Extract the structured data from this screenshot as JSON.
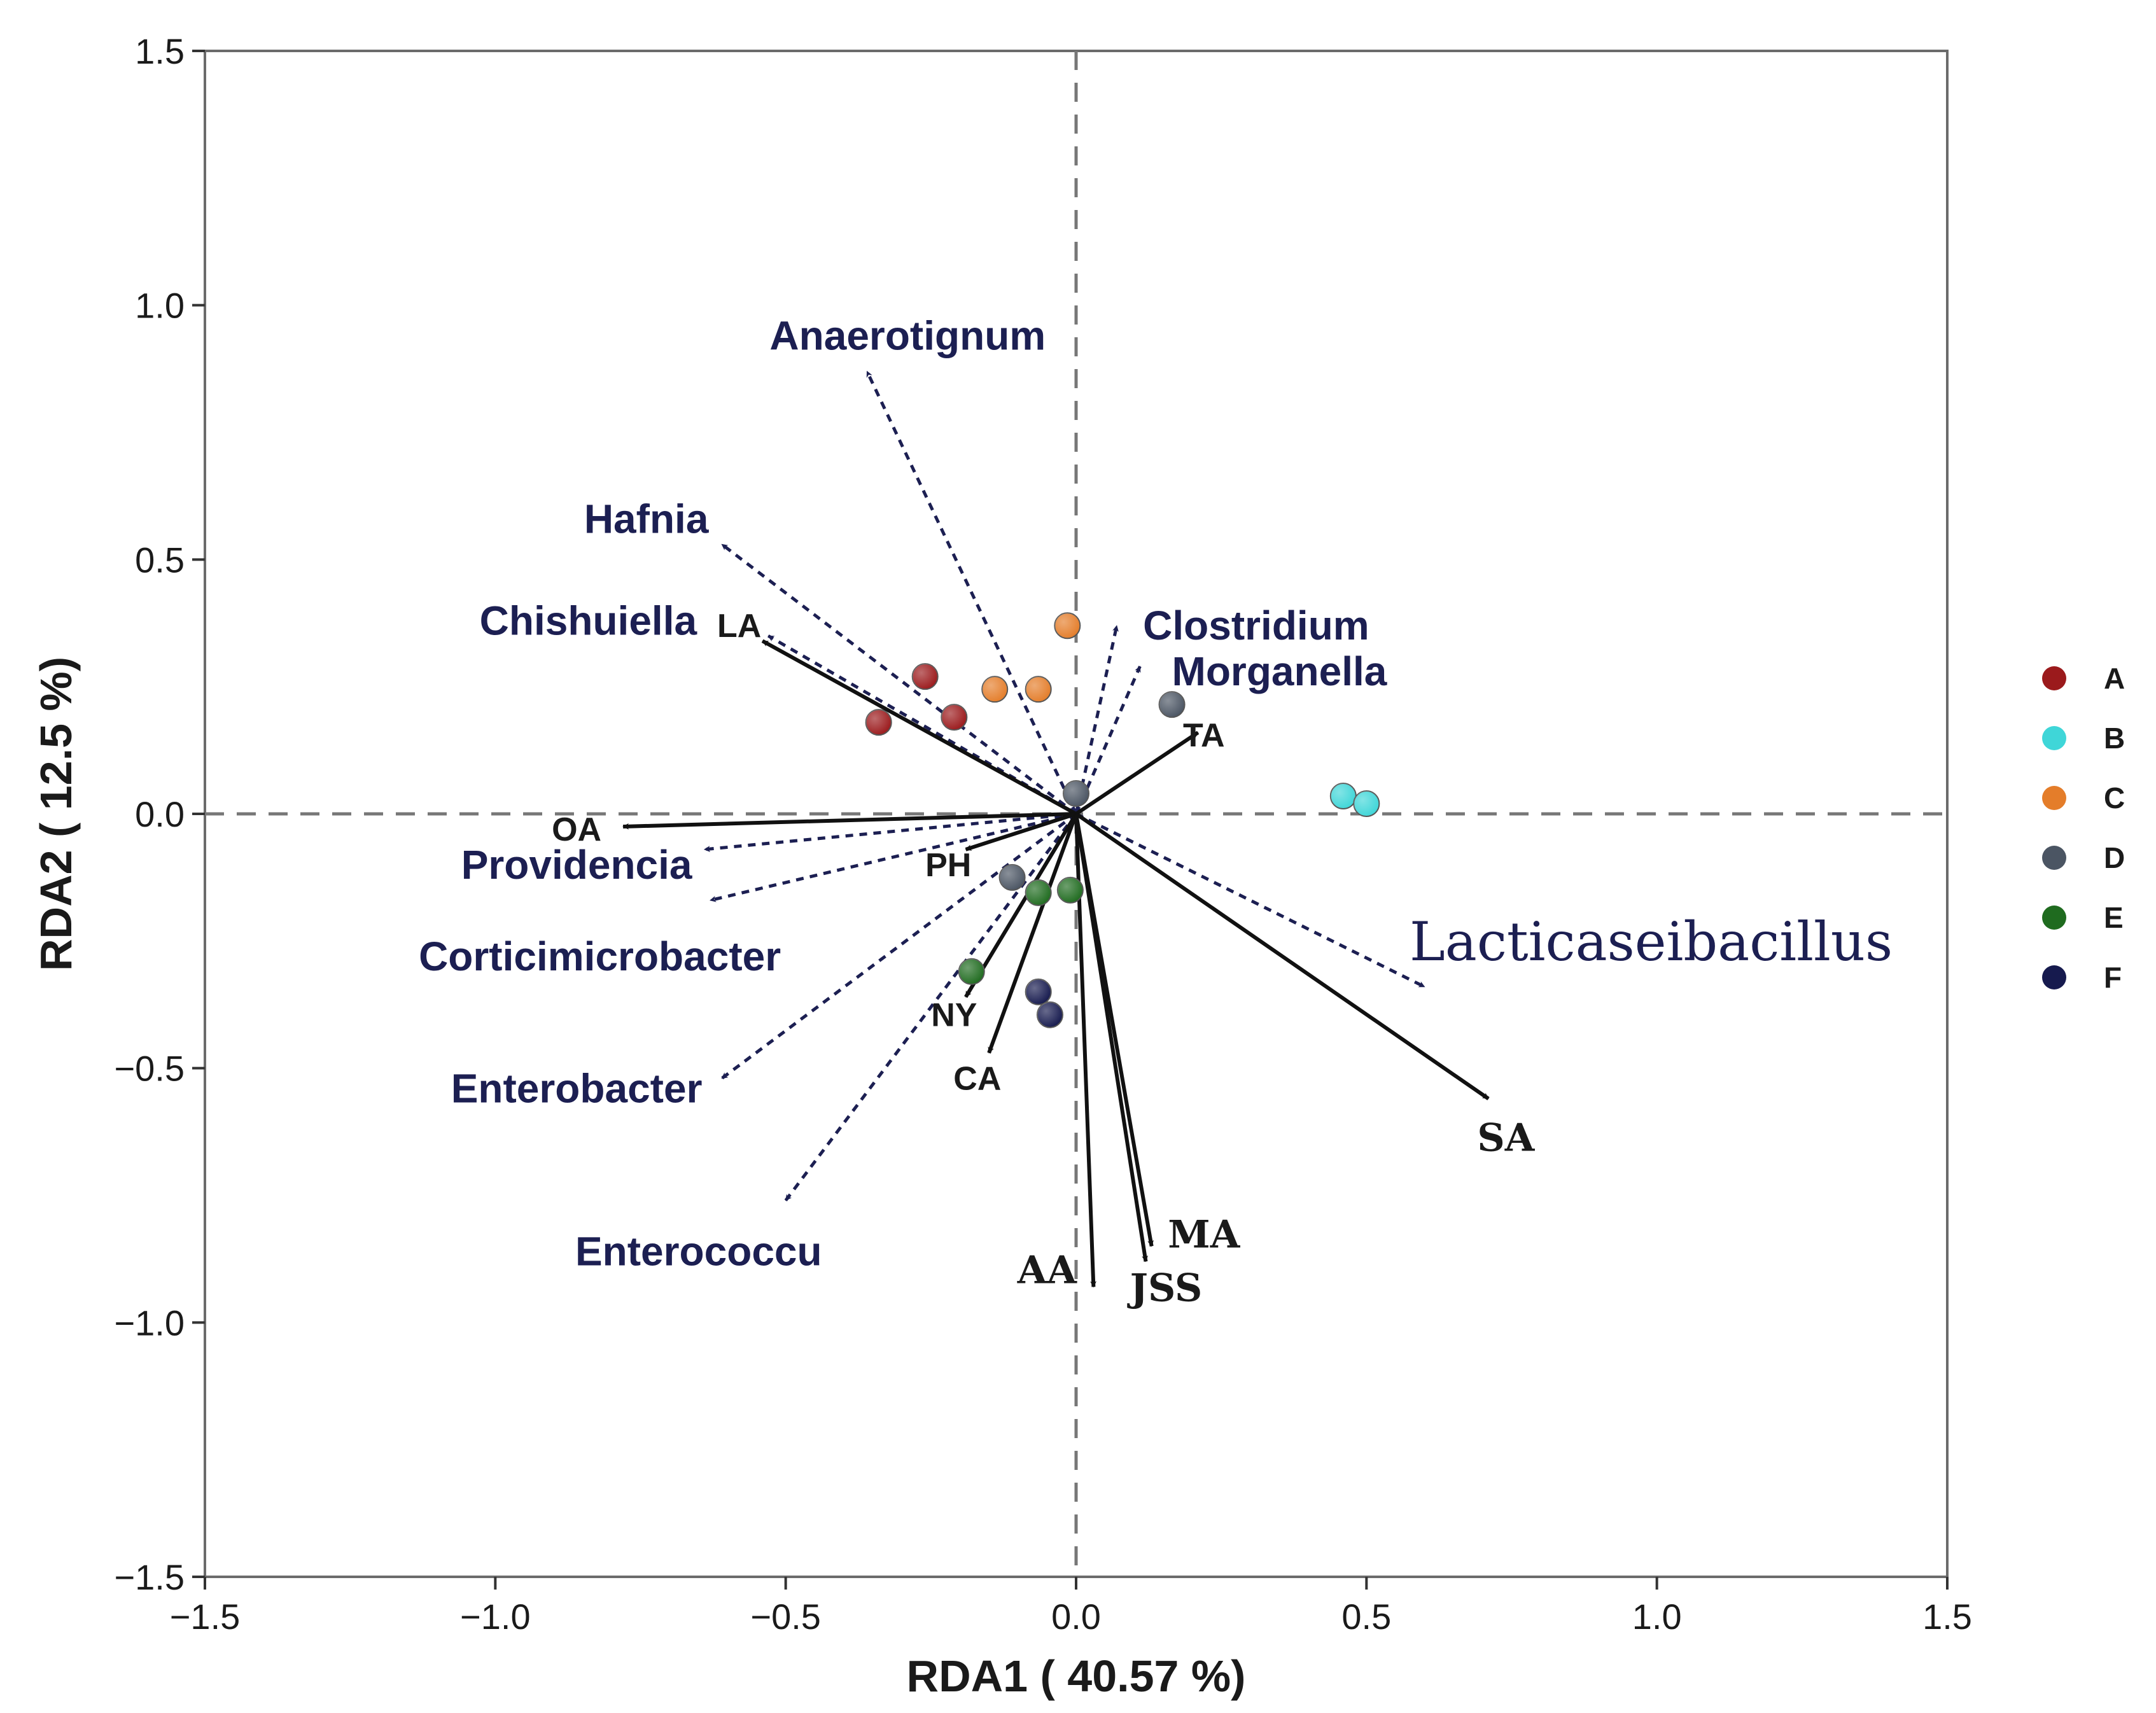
{
  "chart_data": {
    "type": "scatter",
    "subtype": "rda-biplot",
    "xlabel": "RDA1 ( 40.57 %)",
    "ylabel": "RDA2 ( 12.5 %)",
    "xlim": [
      -1.5,
      1.5
    ],
    "ylim": [
      -1.5,
      1.5
    ],
    "xticks": [
      -1.5,
      -1.0,
      -0.5,
      0.0,
      0.5,
      1.0,
      1.5
    ],
    "xtick_labels": [
      "−1.5",
      "−1.0",
      "−0.5",
      "0.0",
      "0.5",
      "1.0",
      "1.5"
    ],
    "yticks": [
      -1.5,
      -1.0,
      -0.5,
      0.0,
      0.5,
      1.0,
      1.5
    ],
    "ytick_labels": [
      "−1.5",
      "−1.0",
      "−0.5",
      "0.0",
      "0.5",
      "1.0",
      "1.5"
    ],
    "reference_lines": {
      "x": 0,
      "y": 0,
      "style": "dashed"
    },
    "groups": [
      {
        "name": "A",
        "color": "#9b1a1c",
        "points": [
          [
            -0.34,
            0.18
          ],
          [
            -0.26,
            0.27
          ],
          [
            -0.21,
            0.19
          ]
        ]
      },
      {
        "name": "B",
        "color": "#3fd6d8",
        "points": [
          [
            0.46,
            0.035
          ],
          [
            0.5,
            0.02
          ]
        ]
      },
      {
        "name": "C",
        "color": "#e47d2a",
        "points": [
          [
            -0.14,
            0.245
          ],
          [
            -0.065,
            0.245
          ],
          [
            -0.015,
            0.37
          ]
        ]
      },
      {
        "name": "D",
        "color": "#4b5563",
        "points": [
          [
            0.165,
            0.215
          ],
          [
            0.0,
            0.04
          ],
          [
            -0.11,
            -0.125
          ]
        ]
      },
      {
        "name": "E",
        "color": "#1f6b1f",
        "points": [
          [
            -0.065,
            -0.155
          ],
          [
            -0.01,
            -0.15
          ],
          [
            -0.18,
            -0.31
          ]
        ]
      },
      {
        "name": "F",
        "color": "#161a4e",
        "points": [
          [
            -0.065,
            -0.35
          ],
          [
            -0.045,
            -0.395
          ]
        ]
      }
    ],
    "species_vectors": [
      {
        "name": "Anaerotignum",
        "x": -0.36,
        "y": 0.87
      },
      {
        "name": "Hafnia",
        "x": -0.61,
        "y": 0.53
      },
      {
        "name": "Chishuiella",
        "x": -0.53,
        "y": 0.35
      },
      {
        "name": "Clostridium",
        "x": 0.07,
        "y": 0.37
      },
      {
        "name": "Morganella",
        "x": 0.11,
        "y": 0.29
      },
      {
        "name": "Providencia",
        "x": -0.64,
        "y": -0.07
      },
      {
        "name": "Corticimicrobacter",
        "x": -0.63,
        "y": -0.17
      },
      {
        "name": "Enterobacter",
        "x": -0.61,
        "y": -0.52
      },
      {
        "name": "Enterococcu",
        "x": -0.5,
        "y": -0.76
      },
      {
        "name": "Lacticaseibacillus",
        "x": 0.6,
        "y": -0.34
      }
    ],
    "environment_vectors": [
      {
        "name": "LA",
        "x": -0.54,
        "y": 0.34
      },
      {
        "name": "OA",
        "x": -0.78,
        "y": -0.025
      },
      {
        "name": "PH",
        "x": -0.19,
        "y": -0.07
      },
      {
        "name": "TA",
        "x": 0.21,
        "y": 0.16
      },
      {
        "name": "SA",
        "x": 0.71,
        "y": -0.56
      },
      {
        "name": "NY",
        "x": -0.19,
        "y": -0.36
      },
      {
        "name": "CA",
        "x": -0.15,
        "y": -0.47
      },
      {
        "name": "AA",
        "x": 0.03,
        "y": -0.93
      },
      {
        "name": "MA",
        "x": 0.13,
        "y": -0.85
      },
      {
        "name": "JSS",
        "x": 0.12,
        "y": -0.88
      }
    ]
  }
}
